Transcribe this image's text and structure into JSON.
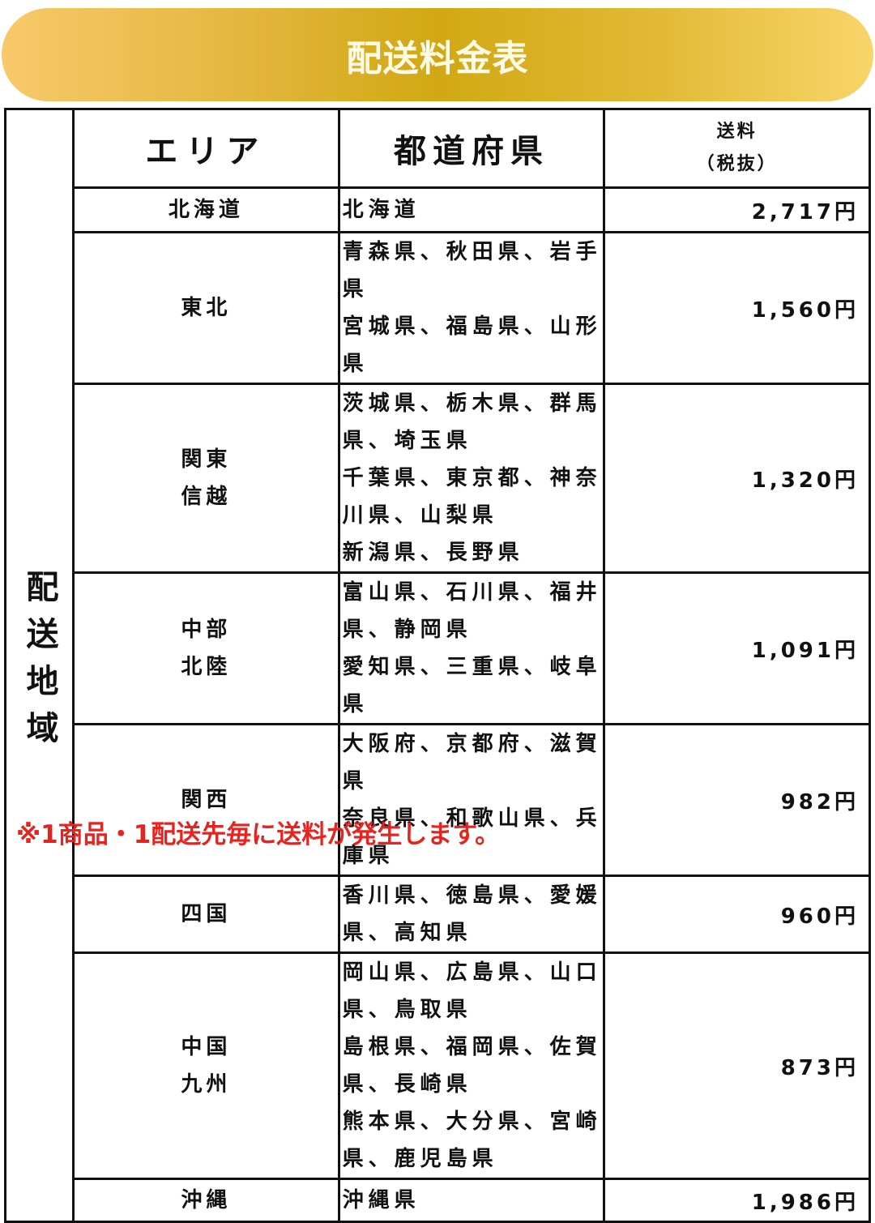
{
  "title": "配送料金表",
  "header": {
    "side": "配送地域",
    "area": "エリア",
    "prefecture": "都道府県",
    "price_line1": "送料",
    "price_line2": "（税抜）"
  },
  "rows": [
    {
      "area": [
        "北海道"
      ],
      "prefectures": [
        "北海道"
      ],
      "price": "2,717円"
    },
    {
      "area": [
        "東北"
      ],
      "prefectures": [
        "青森県、秋田県、岩手県",
        "宮城県、福島県、山形県"
      ],
      "price": "1,560円"
    },
    {
      "area": [
        "関東",
        "信越"
      ],
      "prefectures": [
        "茨城県、栃木県、群馬県、埼玉県",
        "千葉県、東京都、神奈川県、山梨県",
        "新潟県、長野県"
      ],
      "price": "1,320円"
    },
    {
      "area": [
        "中部",
        "北陸"
      ],
      "prefectures": [
        "富山県、石川県、福井県、静岡県",
        "愛知県、三重県、岐阜県"
      ],
      "price": "1,091円"
    },
    {
      "area": [
        "関西"
      ],
      "prefectures": [
        "大阪府、京都府、滋賀県",
        "奈良県、和歌山県、兵庫県"
      ],
      "price": "982円"
    },
    {
      "area": [
        "四国"
      ],
      "prefectures": [
        "香川県、徳島県、愛媛県、高知県"
      ],
      "price": "960円"
    },
    {
      "area": [
        "中国",
        "九州"
      ],
      "prefectures": [
        "岡山県、広島県、山口県、鳥取県",
        "島根県、福岡県、佐賀県、長崎県",
        "熊本県、大分県、宮崎県、鹿児島県"
      ],
      "price": "873円"
    },
    {
      "area": [
        "沖縄"
      ],
      "prefectures": [
        "沖縄県"
      ],
      "price": "1,986円"
    }
  ],
  "note": "※1商品・1配送先毎に送料が発生します。",
  "colors": {
    "banner_center": "#d1a813",
    "note": "#e52420"
  }
}
